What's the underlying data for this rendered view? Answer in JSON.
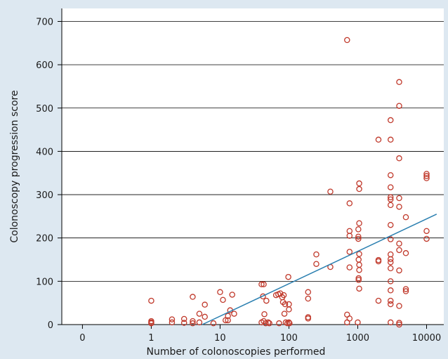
{
  "chart_data": {
    "type": "scatter",
    "title": "",
    "xlabel": "Number of colonoscopies performed",
    "ylabel": "Colonoscopy progression score",
    "x_scale": "log",
    "x_ticks": [
      {
        "value": 0,
        "label": "0"
      },
      {
        "value": 1,
        "label": "1"
      },
      {
        "value": 10,
        "label": "10"
      },
      {
        "value": 100,
        "label": "100"
      },
      {
        "value": 1000,
        "label": "1000"
      },
      {
        "value": 10000,
        "label": "10000"
      }
    ],
    "xlim_decades": [
      -1.3,
      4.25
    ],
    "y_ticks": [
      0,
      100,
      200,
      300,
      400,
      500,
      600,
      700
    ],
    "ylim": [
      0,
      730
    ],
    "grid": "horizontal",
    "colors": {
      "points": "#c0392b",
      "trend": "#2a7fb0",
      "plot_bg": "#ffffff",
      "page_bg": "#dde8f1"
    },
    "trend_line": {
      "x": [
        5.5,
        14000
      ],
      "y": [
        0,
        255
      ]
    },
    "points": [
      {
        "x": 1,
        "y": 55
      },
      {
        "x": 1,
        "y": 8
      },
      {
        "x": 1,
        "y": 5
      },
      {
        "x": 1,
        "y": 3
      },
      {
        "x": 2,
        "y": 12
      },
      {
        "x": 2,
        "y": 5
      },
      {
        "x": 3,
        "y": 13
      },
      {
        "x": 3,
        "y": 4
      },
      {
        "x": 4,
        "y": 64
      },
      {
        "x": 4,
        "y": 8
      },
      {
        "x": 4,
        "y": 3
      },
      {
        "x": 5,
        "y": 25
      },
      {
        "x": 5,
        "y": 5
      },
      {
        "x": 6,
        "y": 46
      },
      {
        "x": 6,
        "y": 18
      },
      {
        "x": 8,
        "y": 3
      },
      {
        "x": 10,
        "y": 75
      },
      {
        "x": 11,
        "y": 57
      },
      {
        "x": 12,
        "y": 10
      },
      {
        "x": 13,
        "y": 20
      },
      {
        "x": 13,
        "y": 10
      },
      {
        "x": 14,
        "y": 33
      },
      {
        "x": 15,
        "y": 69
      },
      {
        "x": 16,
        "y": 25
      },
      {
        "x": 40,
        "y": 93
      },
      {
        "x": 43,
        "y": 93
      },
      {
        "x": 42,
        "y": 65
      },
      {
        "x": 44,
        "y": 24
      },
      {
        "x": 40,
        "y": 5
      },
      {
        "x": 43,
        "y": 8
      },
      {
        "x": 46,
        "y": 3
      },
      {
        "x": 47,
        "y": 55
      },
      {
        "x": 50,
        "y": 5
      },
      {
        "x": 52,
        "y": 3
      },
      {
        "x": 65,
        "y": 68
      },
      {
        "x": 70,
        "y": 70
      },
      {
        "x": 75,
        "y": 72
      },
      {
        "x": 72,
        "y": 3
      },
      {
        "x": 80,
        "y": 63
      },
      {
        "x": 82,
        "y": 52
      },
      {
        "x": 84,
        "y": 68
      },
      {
        "x": 86,
        "y": 25
      },
      {
        "x": 88,
        "y": 47
      },
      {
        "x": 90,
        "y": 5
      },
      {
        "x": 95,
        "y": 3
      },
      {
        "x": 98,
        "y": 110
      },
      {
        "x": 100,
        "y": 47
      },
      {
        "x": 100,
        "y": 35
      },
      {
        "x": 100,
        "y": 5
      },
      {
        "x": 102,
        "y": 3
      },
      {
        "x": 190,
        "y": 75
      },
      {
        "x": 190,
        "y": 60
      },
      {
        "x": 190,
        "y": 17
      },
      {
        "x": 190,
        "y": 14
      },
      {
        "x": 250,
        "y": 162
      },
      {
        "x": 250,
        "y": 140
      },
      {
        "x": 400,
        "y": 307
      },
      {
        "x": 400,
        "y": 133
      },
      {
        "x": 700,
        "y": 657
      },
      {
        "x": 700,
        "y": 23
      },
      {
        "x": 700,
        "y": 5
      },
      {
        "x": 760,
        "y": 280
      },
      {
        "x": 760,
        "y": 216
      },
      {
        "x": 760,
        "y": 205
      },
      {
        "x": 760,
        "y": 168
      },
      {
        "x": 760,
        "y": 132
      },
      {
        "x": 760,
        "y": 14
      },
      {
        "x": 1000,
        "y": 5
      },
      {
        "x": 1020,
        "y": 220
      },
      {
        "x": 1020,
        "y": 203
      },
      {
        "x": 1020,
        "y": 198
      },
      {
        "x": 1030,
        "y": 150
      },
      {
        "x": 1030,
        "y": 107
      },
      {
        "x": 1030,
        "y": 103
      },
      {
        "x": 1050,
        "y": 326
      },
      {
        "x": 1050,
        "y": 313
      },
      {
        "x": 1050,
        "y": 234
      },
      {
        "x": 1050,
        "y": 163
      },
      {
        "x": 1050,
        "y": 138
      },
      {
        "x": 1050,
        "y": 126
      },
      {
        "x": 1050,
        "y": 83
      },
      {
        "x": 2000,
        "y": 427
      },
      {
        "x": 2000,
        "y": 149
      },
      {
        "x": 2000,
        "y": 146
      },
      {
        "x": 2000,
        "y": 55
      },
      {
        "x": 3000,
        "y": 472
      },
      {
        "x": 3000,
        "y": 427
      },
      {
        "x": 3000,
        "y": 345
      },
      {
        "x": 3000,
        "y": 317
      },
      {
        "x": 3000,
        "y": 294
      },
      {
        "x": 3000,
        "y": 289
      },
      {
        "x": 3000,
        "y": 276
      },
      {
        "x": 3000,
        "y": 230
      },
      {
        "x": 3000,
        "y": 197
      },
      {
        "x": 3000,
        "y": 162
      },
      {
        "x": 3000,
        "y": 151
      },
      {
        "x": 3000,
        "y": 144
      },
      {
        "x": 3000,
        "y": 130
      },
      {
        "x": 3000,
        "y": 100
      },
      {
        "x": 3000,
        "y": 79
      },
      {
        "x": 3000,
        "y": 55
      },
      {
        "x": 3000,
        "y": 47
      },
      {
        "x": 3000,
        "y": 5
      },
      {
        "x": 4000,
        "y": 560
      },
      {
        "x": 4000,
        "y": 505
      },
      {
        "x": 4000,
        "y": 384
      },
      {
        "x": 4000,
        "y": 292
      },
      {
        "x": 4000,
        "y": 272
      },
      {
        "x": 4000,
        "y": 187
      },
      {
        "x": 4000,
        "y": 172
      },
      {
        "x": 4000,
        "y": 125
      },
      {
        "x": 4000,
        "y": 43
      },
      {
        "x": 4000,
        "y": 4
      },
      {
        "x": 4000,
        "y": 0
      },
      {
        "x": 5000,
        "y": 248
      },
      {
        "x": 5000,
        "y": 165
      },
      {
        "x": 5000,
        "y": 82
      },
      {
        "x": 5000,
        "y": 77
      },
      {
        "x": 10000,
        "y": 348
      },
      {
        "x": 10000,
        "y": 343
      },
      {
        "x": 10000,
        "y": 338
      },
      {
        "x": 10000,
        "y": 216
      },
      {
        "x": 10000,
        "y": 198
      }
    ]
  }
}
